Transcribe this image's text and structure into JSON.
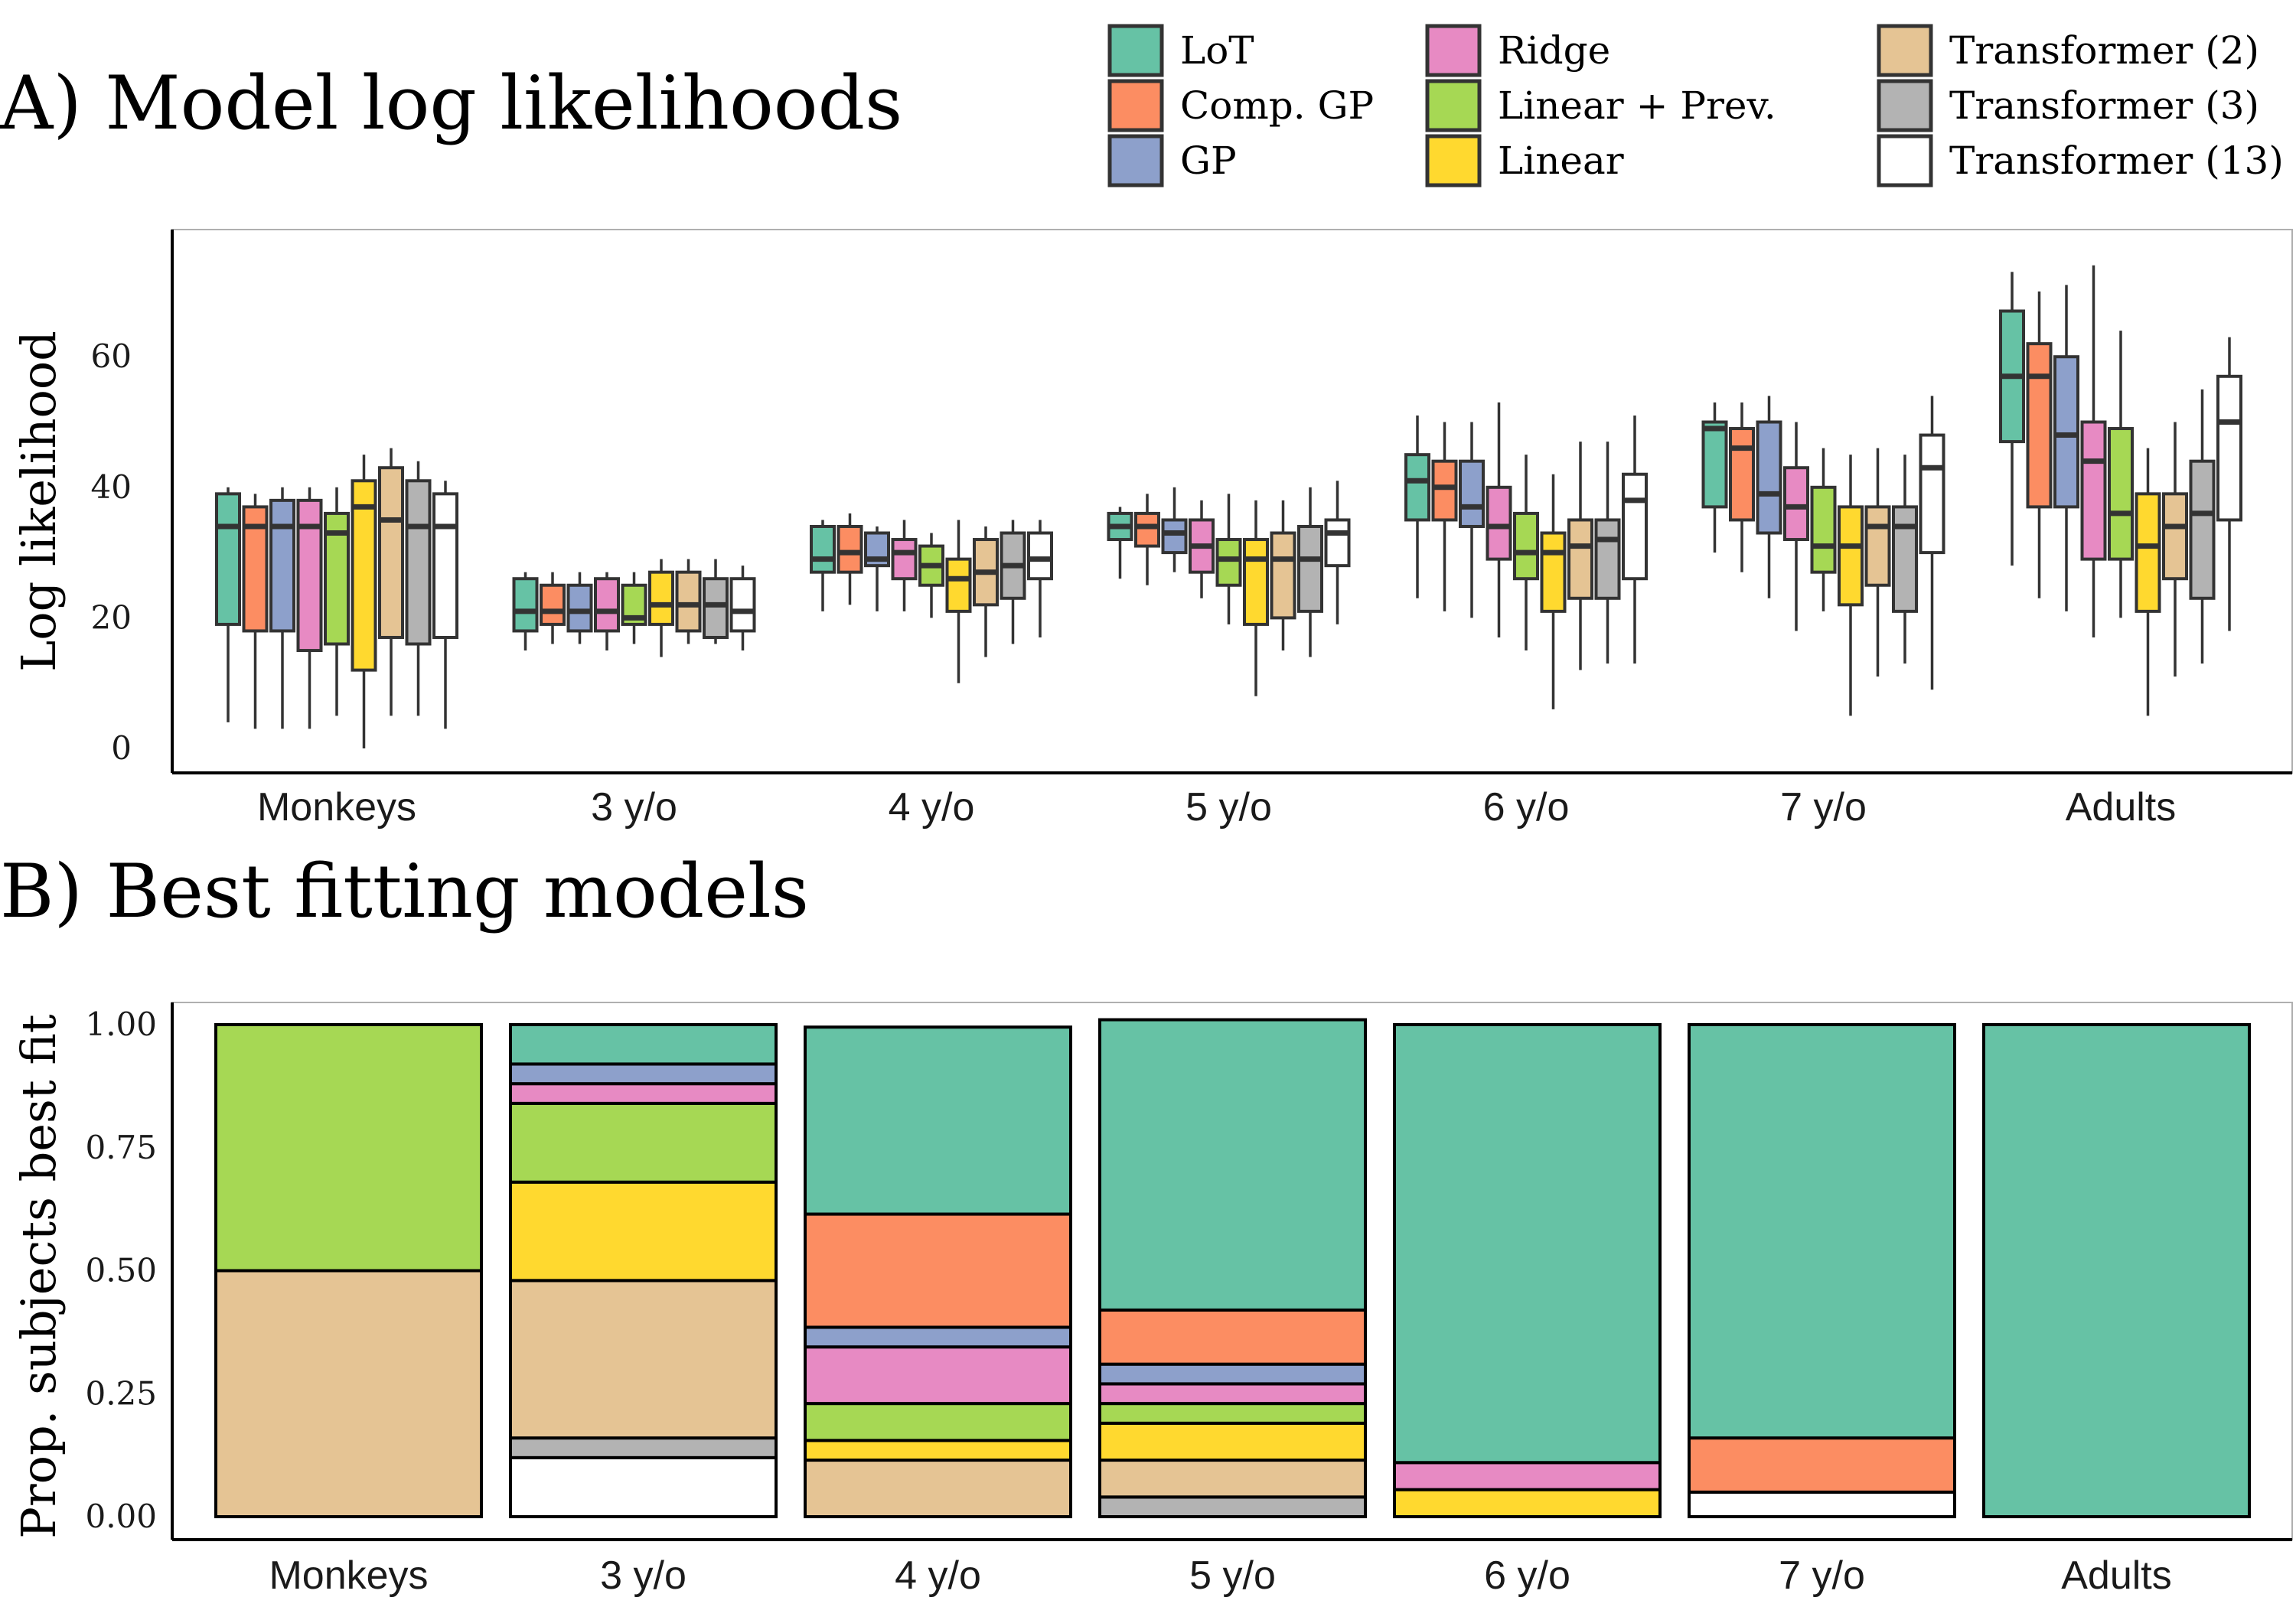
{
  "legend": {
    "entries": [
      {
        "label": "LoT",
        "color": "#66c2a5"
      },
      {
        "label": "Comp. GP",
        "color": "#fc8d62"
      },
      {
        "label": "GP",
        "color": "#8da0cb"
      },
      {
        "label": "Ridge",
        "color": "#e78ac3"
      },
      {
        "label": "Linear + Prev.",
        "color": "#a6d854"
      },
      {
        "label": "Linear",
        "color": "#ffd92f"
      },
      {
        "label": "Transformer (2)",
        "color": "#e5c494"
      },
      {
        "label": "Transformer (3)",
        "color": "#b3b3b3"
      },
      {
        "label": "Transformer (13)",
        "color": "#ffffff"
      }
    ]
  },
  "chart_data": [
    {
      "type": "box",
      "title": "A) Model log likelihoods",
      "xlabel": "",
      "ylabel": "Log likelihood",
      "ylim": [
        0,
        78
      ],
      "yticks": [
        0,
        20,
        40,
        60
      ],
      "categories": [
        "Monkeys",
        "3 y/o",
        "4 y/o",
        "5 y/o",
        "6 y/o",
        "7 y/o",
        "Adults"
      ],
      "grid": false,
      "series": [
        {
          "name": "LoT",
          "boxes": [
            [
              4,
              19,
              34,
              39,
              40
            ],
            [
              15,
              18,
              21,
              26,
              27
            ],
            [
              21,
              27,
              29,
              34,
              35
            ],
            [
              26,
              32,
              34,
              36,
              37
            ],
            [
              23,
              35,
              41,
              45,
              51
            ],
            [
              30,
              37,
              49,
              50,
              53
            ],
            [
              28,
              47,
              57,
              67,
              73
            ]
          ]
        },
        {
          "name": "Comp. GP",
          "boxes": [
            [
              3,
              18,
              34,
              37,
              39
            ],
            [
              16,
              19,
              21,
              25,
              27
            ],
            [
              22,
              27,
              30,
              34,
              36
            ],
            [
              25,
              31,
              34,
              36,
              39
            ],
            [
              21,
              35,
              40,
              44,
              50
            ],
            [
              27,
              35,
              46,
              49,
              53
            ],
            [
              23,
              37,
              57,
              62,
              70
            ]
          ]
        },
        {
          "name": "GP",
          "boxes": [
            [
              3,
              18,
              34,
              38,
              40
            ],
            [
              16,
              18,
              21,
              25,
              27
            ],
            [
              21,
              28,
              29,
              33,
              34
            ],
            [
              27,
              30,
              33,
              35,
              40
            ],
            [
              20,
              34,
              37,
              44,
              50
            ],
            [
              23,
              33,
              39,
              50,
              54
            ],
            [
              21,
              37,
              48,
              60,
              71
            ]
          ]
        },
        {
          "name": "Ridge",
          "boxes": [
            [
              3,
              15,
              34,
              38,
              40
            ],
            [
              15,
              18,
              21,
              26,
              27
            ],
            [
              21,
              26,
              30,
              32,
              35
            ],
            [
              23,
              27,
              31,
              35,
              38
            ],
            [
              17,
              29,
              34,
              40,
              53
            ],
            [
              18,
              32,
              37,
              43,
              50
            ],
            [
              17,
              29,
              44,
              50,
              74
            ]
          ]
        },
        {
          "name": "Linear + Prev.",
          "boxes": [
            [
              5,
              16,
              33,
              36,
              40
            ],
            [
              16,
              19,
              20,
              25,
              27
            ],
            [
              20,
              25,
              28,
              31,
              33
            ],
            [
              19,
              25,
              29,
              32,
              39
            ],
            [
              15,
              26,
              30,
              36,
              45
            ],
            [
              21,
              27,
              31,
              40,
              46
            ],
            [
              20,
              29,
              36,
              49,
              64
            ]
          ]
        },
        {
          "name": "Linear",
          "boxes": [
            [
              0,
              12,
              37,
              41,
              45
            ],
            [
              14,
              19,
              22,
              27,
              29
            ],
            [
              10,
              21,
              26,
              29,
              35
            ],
            [
              8,
              19,
              29,
              32,
              38
            ],
            [
              6,
              21,
              30,
              33,
              42
            ],
            [
              5,
              22,
              31,
              37,
              45
            ],
            [
              5,
              21,
              31,
              39,
              46
            ]
          ]
        },
        {
          "name": "Transformer (2)",
          "boxes": [
            [
              5,
              17,
              35,
              43,
              46
            ],
            [
              16,
              18,
              22,
              27,
              29
            ],
            [
              14,
              22,
              27,
              32,
              34
            ],
            [
              15,
              20,
              29,
              33,
              38
            ],
            [
              12,
              23,
              31,
              35,
              47
            ],
            [
              11,
              25,
              34,
              37,
              46
            ],
            [
              11,
              26,
              34,
              39,
              50
            ]
          ]
        },
        {
          "name": "Transformer (3)",
          "boxes": [
            [
              5,
              16,
              34,
              41,
              44
            ],
            [
              16,
              17,
              22,
              26,
              29
            ],
            [
              16,
              23,
              28,
              33,
              35
            ],
            [
              14,
              21,
              29,
              34,
              40
            ],
            [
              13,
              23,
              32,
              35,
              47
            ],
            [
              13,
              21,
              34,
              37,
              45
            ],
            [
              13,
              23,
              36,
              44,
              55
            ]
          ]
        },
        {
          "name": "Transformer (13)",
          "boxes": [
            [
              3,
              17,
              34,
              39,
              41
            ],
            [
              15,
              18,
              21,
              26,
              28
            ],
            [
              17,
              26,
              29,
              33,
              35
            ],
            [
              19,
              28,
              33,
              35,
              41
            ],
            [
              13,
              26,
              38,
              42,
              51
            ],
            [
              9,
              30,
              43,
              48,
              54
            ],
            [
              18,
              35,
              50,
              57,
              63
            ]
          ]
        }
      ]
    },
    {
      "type": "stacked-bar",
      "title": "B) Best fitting models",
      "xlabel": "",
      "ylabel": "Prop. subjects best fit",
      "ylim": [
        0,
        1
      ],
      "yticks": [
        "0.00",
        "0.25",
        "0.50",
        "0.75",
        "1.00"
      ],
      "categories": [
        "Monkeys",
        "3 y/o",
        "4 y/o",
        "5 y/o",
        "6 y/o",
        "7 y/o",
        "Adults"
      ],
      "grid": false,
      "series": [
        {
          "name": "LoT",
          "values": [
            0,
            0.08,
            0.38,
            0.59,
            0.89,
            0.84,
            1.0
          ]
        },
        {
          "name": "Comp. GP",
          "values": [
            0,
            0,
            0.23,
            0.11,
            0,
            0.11,
            0
          ]
        },
        {
          "name": "GP",
          "values": [
            0,
            0.04,
            0.04,
            0.04,
            0,
            0,
            0
          ]
        },
        {
          "name": "Ridge",
          "values": [
            0,
            0.04,
            0.115,
            0.04,
            0.055,
            0,
            0
          ]
        },
        {
          "name": "Linear + Prev.",
          "values": [
            0.5,
            0.16,
            0.075,
            0.04,
            0,
            0,
            0
          ]
        },
        {
          "name": "Linear",
          "values": [
            0,
            0.2,
            0.04,
            0.075,
            0.055,
            0,
            0
          ]
        },
        {
          "name": "Transformer (2)",
          "values": [
            0.5,
            0.32,
            0.115,
            0.075,
            0,
            0,
            0
          ]
        },
        {
          "name": "Transformer (3)",
          "values": [
            0,
            0.04,
            0,
            0.04,
            0,
            0,
            0
          ]
        },
        {
          "name": "Transformer (13)",
          "values": [
            0,
            0.12,
            0,
            0,
            0,
            0.05,
            0
          ]
        }
      ]
    }
  ]
}
